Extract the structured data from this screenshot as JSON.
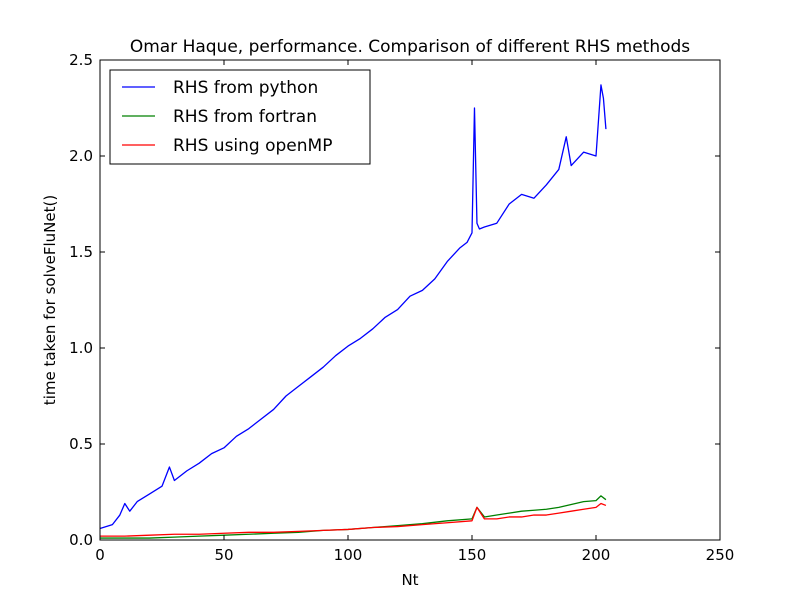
{
  "chart_data": {
    "type": "line",
    "title": "Omar Haque, performance. Comparison of different RHS methods",
    "xlabel": "Nt",
    "ylabel": "time taken for solveFluNet()",
    "xlim": [
      0,
      250
    ],
    "ylim": [
      0,
      2.5
    ],
    "xticks": [
      0,
      50,
      100,
      150,
      200,
      250
    ],
    "yticks": [
      0.0,
      0.5,
      1.0,
      1.5,
      2.0,
      2.5
    ],
    "xtick_labels": [
      "0",
      "50",
      "100",
      "150",
      "200",
      "250"
    ],
    "ytick_labels": [
      "0.0",
      "0.5",
      "1.0",
      "1.5",
      "2.0",
      "2.5"
    ],
    "grid": false,
    "legend_position": "top-left",
    "series": [
      {
        "name": "RHS from python",
        "color": "#0000ff",
        "x": [
          0,
          5,
          8,
          10,
          12,
          15,
          20,
          25,
          28,
          30,
          35,
          40,
          45,
          50,
          55,
          60,
          65,
          70,
          75,
          80,
          85,
          90,
          95,
          100,
          105,
          110,
          115,
          120,
          125,
          130,
          135,
          140,
          145,
          148,
          150,
          151,
          152,
          153,
          155,
          160,
          165,
          170,
          175,
          180,
          185,
          188,
          190,
          195,
          200,
          202,
          203,
          204
        ],
        "y": [
          0.06,
          0.08,
          0.13,
          0.19,
          0.15,
          0.2,
          0.24,
          0.28,
          0.38,
          0.31,
          0.36,
          0.4,
          0.45,
          0.48,
          0.54,
          0.58,
          0.63,
          0.68,
          0.75,
          0.8,
          0.85,
          0.9,
          0.96,
          1.01,
          1.05,
          1.1,
          1.16,
          1.2,
          1.27,
          1.3,
          1.36,
          1.45,
          1.52,
          1.55,
          1.6,
          2.25,
          1.65,
          1.62,
          1.63,
          1.65,
          1.75,
          1.8,
          1.78,
          1.85,
          1.93,
          2.1,
          1.95,
          2.02,
          2.0,
          2.37,
          2.3,
          2.14
        ]
      },
      {
        "name": "RHS from fortran",
        "color": "#008000",
        "x": [
          0,
          10,
          20,
          30,
          40,
          50,
          60,
          70,
          80,
          90,
          100,
          110,
          120,
          130,
          140,
          150,
          152,
          155,
          160,
          165,
          170,
          175,
          180,
          185,
          190,
          195,
          200,
          202,
          204
        ],
        "y": [
          0.01,
          0.01,
          0.01,
          0.015,
          0.02,
          0.025,
          0.03,
          0.035,
          0.04,
          0.05,
          0.055,
          0.065,
          0.075,
          0.085,
          0.1,
          0.11,
          0.17,
          0.12,
          0.13,
          0.14,
          0.15,
          0.155,
          0.16,
          0.17,
          0.185,
          0.2,
          0.205,
          0.23,
          0.21
        ]
      },
      {
        "name": "RHS using openMP",
        "color": "#ff0000",
        "x": [
          0,
          10,
          20,
          30,
          40,
          50,
          60,
          70,
          80,
          90,
          100,
          110,
          120,
          130,
          140,
          150,
          152,
          155,
          160,
          165,
          170,
          175,
          180,
          185,
          190,
          195,
          200,
          202,
          204
        ],
        "y": [
          0.02,
          0.02,
          0.025,
          0.03,
          0.03,
          0.035,
          0.04,
          0.04,
          0.045,
          0.05,
          0.055,
          0.065,
          0.07,
          0.08,
          0.09,
          0.1,
          0.17,
          0.11,
          0.11,
          0.12,
          0.12,
          0.13,
          0.13,
          0.14,
          0.15,
          0.16,
          0.17,
          0.19,
          0.18
        ]
      }
    ]
  }
}
